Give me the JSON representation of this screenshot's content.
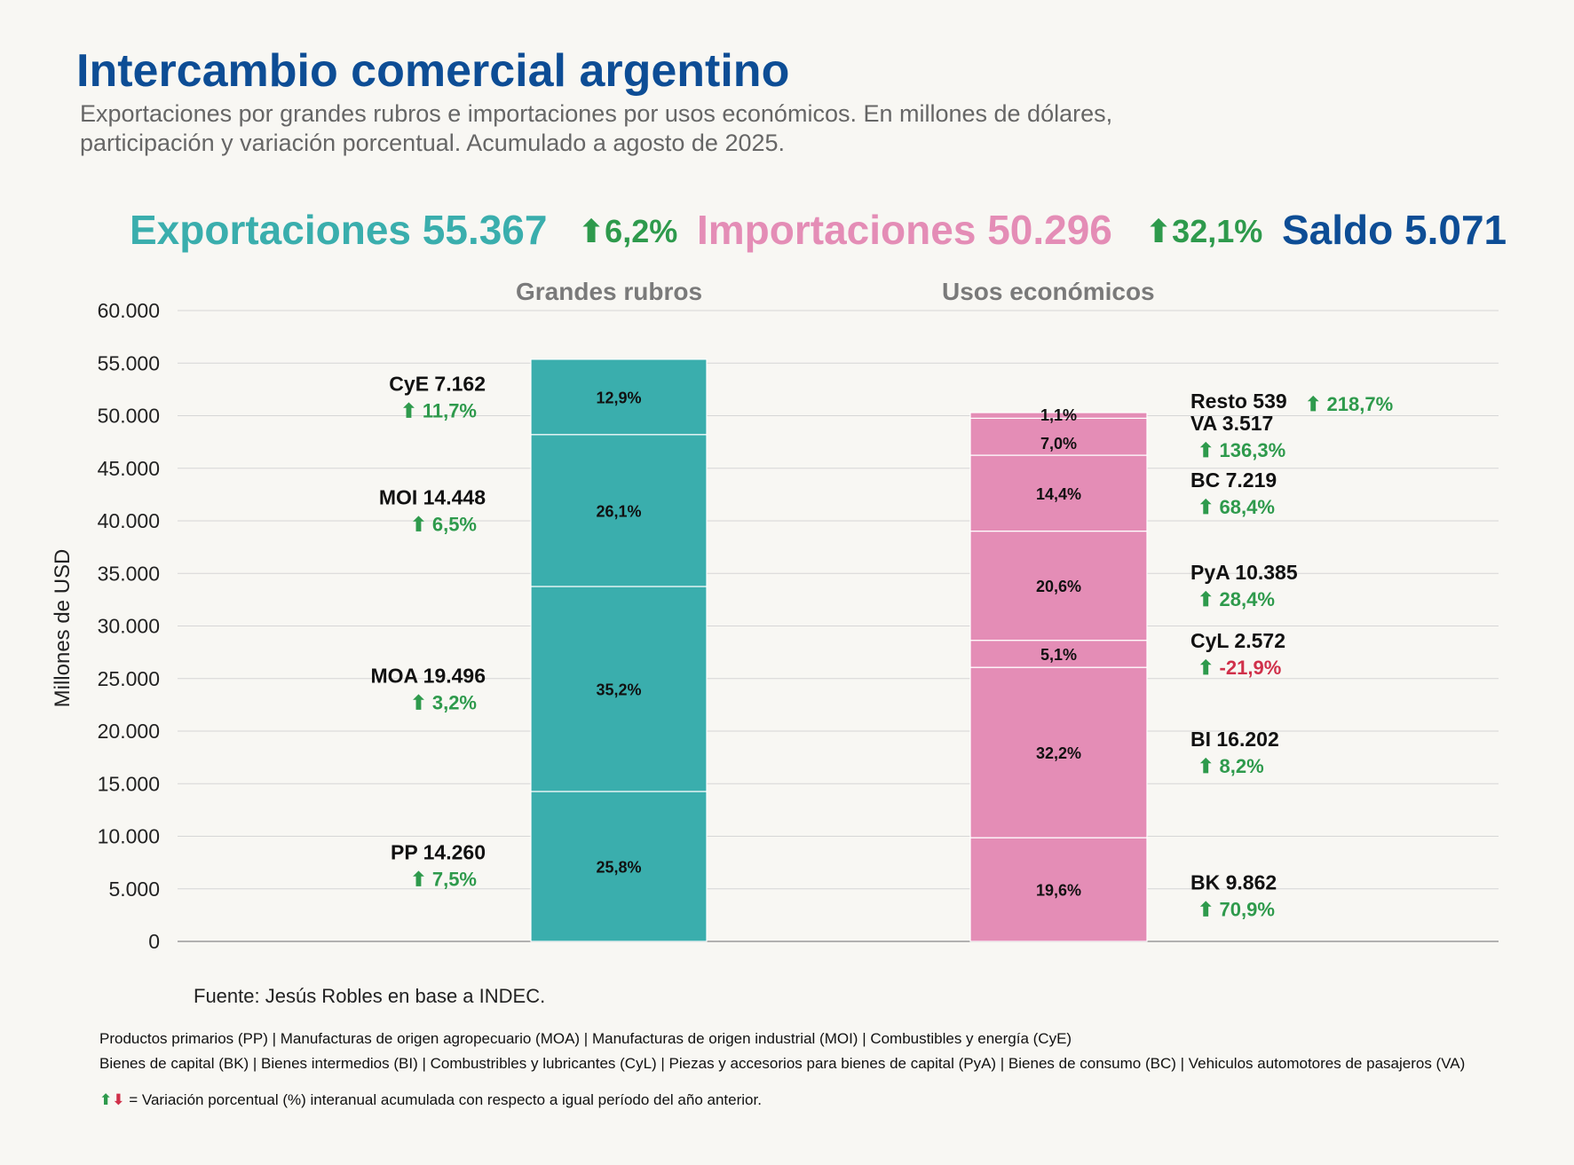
{
  "title": "Intercambio comercial argentino",
  "subtitle": "Exportaciones por grandes rubros e importaciones por usos económicos. En millones de dólares, participación y variación porcentual. Acumulado a agosto de 2025.",
  "headline": {
    "exports_label": "Exportaciones 55.367",
    "exports_var": "6,2%",
    "imports_label": "Importaciones 50.296",
    "imports_var": "32,1%",
    "saldo_label": "Saldo 5.071"
  },
  "colors": {
    "exports": "#3aaead",
    "imports": "#e48db6",
    "positive": "#2e9a4c",
    "negative": "#d0304a",
    "title": "#0d4d95"
  },
  "chart_data": {
    "type": "bar",
    "stacked": true,
    "ylabel": "Millones de USD",
    "ylim": [
      0,
      60000
    ],
    "yticks": [
      0,
      5000,
      10000,
      15000,
      20000,
      25000,
      30000,
      35000,
      40000,
      45000,
      50000,
      55000,
      60000
    ],
    "ytick_labels": [
      "0",
      "5.000",
      "10.000",
      "15.000",
      "20.000",
      "25.000",
      "30.000",
      "35.000",
      "40.000",
      "45.000",
      "50.000",
      "55.000",
      "60.000"
    ],
    "grid": true,
    "groups": [
      {
        "name": "Grandes rubros",
        "color": "#3aaead",
        "segments": [
          {
            "label": "PP 14.260",
            "value": 14260,
            "share": "25,8%",
            "var": "7,5%",
            "var_sign": "up"
          },
          {
            "label": "MOA 19.496",
            "value": 19496,
            "share": "35,2%",
            "var": "3,2%",
            "var_sign": "up"
          },
          {
            "label": "MOI 14.448",
            "value": 14448,
            "share": "26,1%",
            "var": "6,5%",
            "var_sign": "up"
          },
          {
            "label": "CyE 7.162",
            "value": 7162,
            "share": "12,9%",
            "var": "11,7%",
            "var_sign": "up"
          }
        ]
      },
      {
        "name": "Usos económicos",
        "color": "#e48db6",
        "segments": [
          {
            "label": "BK 9.862",
            "value": 9862,
            "share": "19,6%",
            "var": "70,9%",
            "var_sign": "up"
          },
          {
            "label": "BI 16.202",
            "value": 16202,
            "share": "32,2%",
            "var": "8,2%",
            "var_sign": "up"
          },
          {
            "label": "CyL 2.572",
            "value": 2572,
            "share": "5,1%",
            "var": "-21,9%",
            "var_sign": "down"
          },
          {
            "label": "PyA 10.385",
            "value": 10385,
            "share": "20,6%",
            "var": "28,4%",
            "var_sign": "up"
          },
          {
            "label": "BC 7.219",
            "value": 7219,
            "share": "14,4%",
            "var": "68,4%",
            "var_sign": "up"
          },
          {
            "label": "VA 3.517",
            "value": 3517,
            "share": "7,0%",
            "var": "136,3%",
            "var_sign": "up"
          },
          {
            "label": "Resto 539",
            "value": 539,
            "share": "1,1%",
            "var": "218,7%",
            "var_sign": "up"
          }
        ]
      }
    ]
  },
  "footer": {
    "source": "Fuente: Jesús Robles en base a INDEC.",
    "note1": "Productos primarios (PP) | Manufacturas de origen agropecuario (MOA) | Manufacturas de origen industrial (MOI) | Combustibles y energía (CyE)",
    "note2": "Bienes de capital (BK) | Bienes intermedios (BI) | Combustribles y lubricantes (CyL) | Piezas y accesorios para bienes de capital (PyA) | Bienes de consumo (BC) | Vehiculos automotores de pasajeros (VA)",
    "legend_text": "= Variación porcentual (%) interanual acumulada con respecto a igual período del año anterior."
  }
}
